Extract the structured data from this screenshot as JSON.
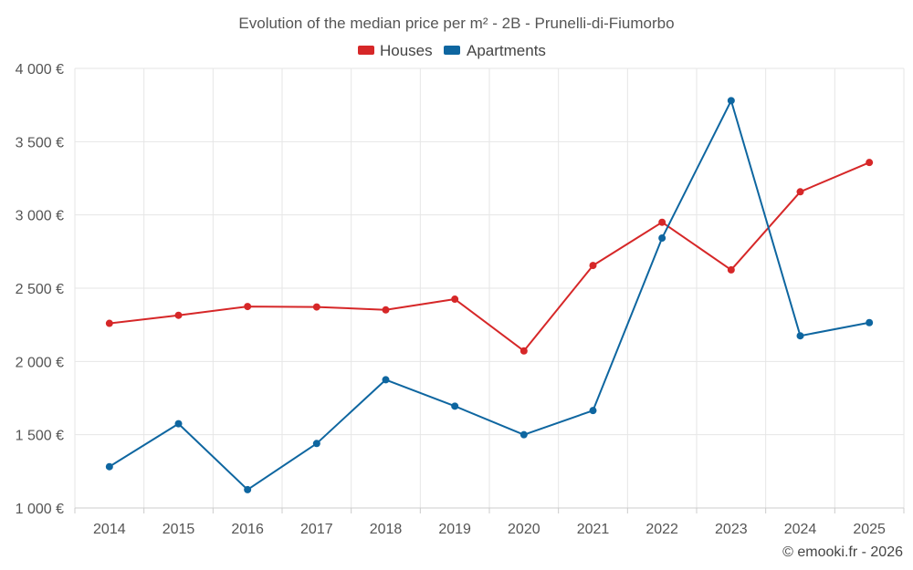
{
  "chart_data": {
    "type": "line",
    "title": "Evolution of the median price per m² - 2B - Prunelli-di-Fiumorbo",
    "categories": [
      "2014",
      "2015",
      "2016",
      "2017",
      "2018",
      "2019",
      "2020",
      "2021",
      "2022",
      "2023",
      "2024",
      "2025"
    ],
    "series": [
      {
        "name": "Houses",
        "color": "#d62728",
        "values": [
          2260,
          2315,
          2375,
          2372,
          2352,
          2425,
          2072,
          2655,
          2950,
          2625,
          3158,
          3358
        ]
      },
      {
        "name": "Apartments",
        "color": "#0e66a0",
        "values": [
          1282,
          1575,
          1125,
          1440,
          1875,
          1695,
          1500,
          1665,
          2842,
          3780,
          2175,
          2265
        ]
      }
    ],
    "ylim": [
      1000,
      4000
    ],
    "yticks": [
      1000,
      1500,
      2000,
      2500,
      3000,
      3500,
      4000
    ],
    "ytick_labels": [
      "1 000 €",
      "1 500 €",
      "2 000 €",
      "2 500 €",
      "3 000 €",
      "3 500 €",
      "4 000 €"
    ],
    "xlabel": "",
    "ylabel": "",
    "grid": true,
    "legend_position": "top-center"
  },
  "credit": "© emooki.fr - 2026"
}
